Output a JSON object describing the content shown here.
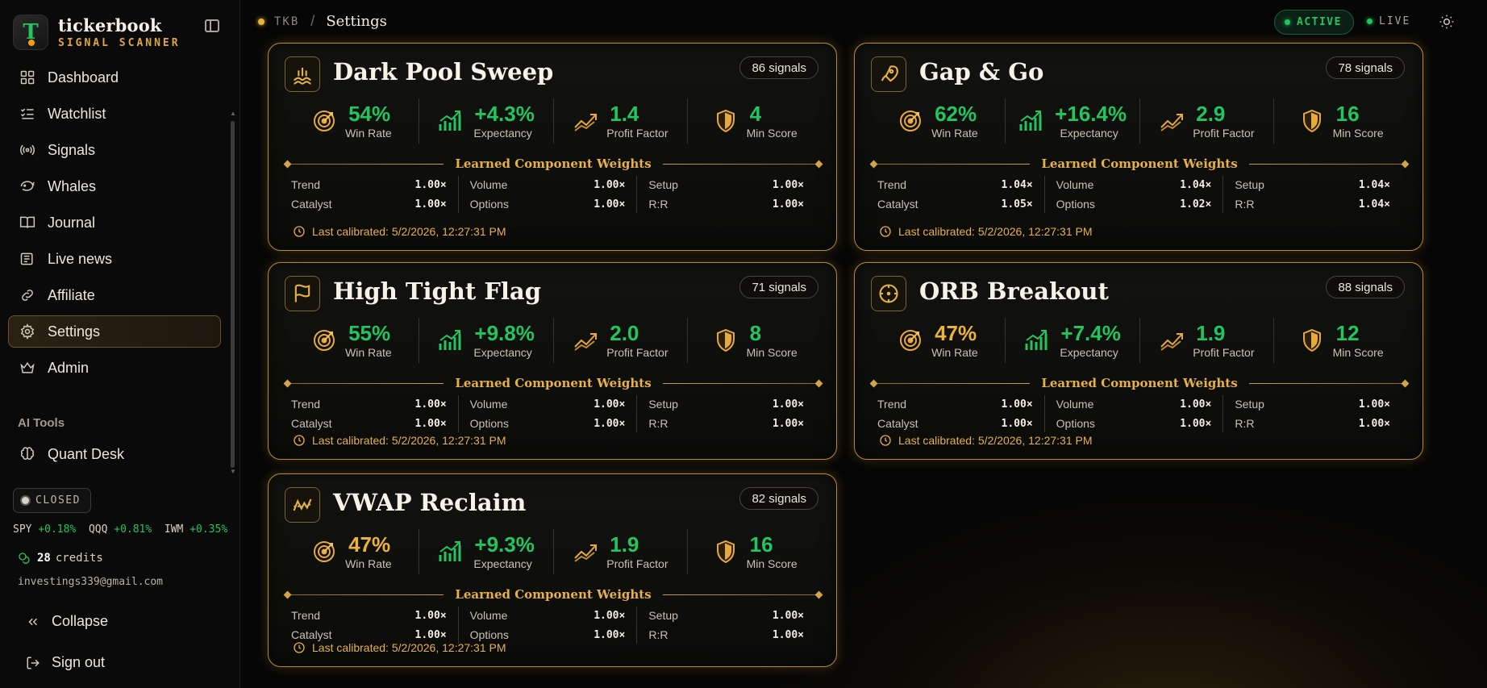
{
  "brand": {
    "name": "tickerbook",
    "subtitle": "SIGNAL SCANNER"
  },
  "nav": [
    {
      "label": "Dashboard",
      "icon": "grid-icon"
    },
    {
      "label": "Watchlist",
      "icon": "checklist-icon"
    },
    {
      "label": "Signals",
      "icon": "radio-icon"
    },
    {
      "label": "Whales",
      "icon": "whale-icon"
    },
    {
      "label": "Journal",
      "icon": "book-icon"
    },
    {
      "label": "Live news",
      "icon": "newspaper-icon"
    },
    {
      "label": "Affiliate",
      "icon": "link-icon"
    },
    {
      "label": "Settings",
      "icon": "gear-icon",
      "active": true
    },
    {
      "label": "Admin",
      "icon": "crown-icon"
    }
  ],
  "ai_tools": {
    "title": "AI Tools",
    "items": [
      {
        "label": "Quant Desk",
        "icon": "brain-icon"
      }
    ]
  },
  "market": {
    "status": "CLOSED",
    "tickers": [
      {
        "sym": "SPY",
        "chg": "+0.18%"
      },
      {
        "sym": "QQQ",
        "chg": "+0.81%"
      },
      {
        "sym": "IWM",
        "chg": "+0.35%"
      }
    ]
  },
  "user": {
    "credits": "28",
    "credits_label": "credits",
    "email": "investings339@gmail.com"
  },
  "footer": {
    "collapse": "Collapse",
    "signout": "Sign out"
  },
  "header": {
    "tag": "TKB",
    "sep": "/",
    "page": "Settings",
    "active": "ACTIVE",
    "live": "LIVE"
  },
  "colors": {
    "accent_gold": "#e6b146",
    "positive": "#22c55e",
    "warning": "#eab43a"
  },
  "labels": {
    "win_rate": "Win Rate",
    "expectancy": "Expectancy",
    "profit_factor": "Profit Factor",
    "min_score": "Min Score",
    "weights_title": "Learned Component Weights",
    "calib_prefix": "Last calibrated: "
  },
  "weight_labels": [
    "Trend",
    "Catalyst",
    "Volume",
    "Options",
    "Setup",
    "R:R"
  ],
  "cards": [
    {
      "title": "Dark Pool Sweep",
      "icon": "waves-icon",
      "signals": "86 signals",
      "win_rate": "54%",
      "win_color": "green",
      "expectancy": "+4.3%",
      "profit_factor": "1.4",
      "min_score": "4",
      "weights": [
        "1.00×",
        "1.00×",
        "1.00×",
        "1.00×",
        "1.00×",
        "1.00×"
      ],
      "calibrated": "5/2/2026, 12:27:31 PM"
    },
    {
      "title": "Gap & Go",
      "icon": "rocket-icon",
      "signals": "78 signals",
      "win_rate": "62%",
      "win_color": "green",
      "expectancy": "+16.4%",
      "profit_factor": "2.9",
      "min_score": "16",
      "weights": [
        "1.04×",
        "1.05×",
        "1.04×",
        "1.02×",
        "1.04×",
        "1.04×"
      ],
      "calibrated": "5/2/2026, 12:27:31 PM"
    },
    {
      "title": "High Tight Flag",
      "icon": "flag-icon",
      "signals": "71 signals",
      "win_rate": "55%",
      "win_color": "green",
      "expectancy": "+9.8%",
      "profit_factor": "2.0",
      "min_score": "8",
      "weights": [
        "1.00×",
        "1.00×",
        "1.00×",
        "1.00×",
        "1.00×",
        "1.00×"
      ],
      "calibrated": "5/2/2026, 12:27:31 PM"
    },
    {
      "title": "ORB Breakout",
      "icon": "crosshair-icon",
      "signals": "88 signals",
      "win_rate": "47%",
      "win_color": "gold",
      "expectancy": "+7.4%",
      "profit_factor": "1.9",
      "min_score": "12",
      "weights": [
        "1.00×",
        "1.00×",
        "1.00×",
        "1.00×",
        "1.00×",
        "1.00×"
      ],
      "calibrated": "5/2/2026, 12:27:31 PM"
    },
    {
      "title": "VWAP Reclaim",
      "icon": "vwap-icon",
      "signals": "82 signals",
      "win_rate": "47%",
      "win_color": "gold",
      "expectancy": "+9.3%",
      "profit_factor": "1.9",
      "min_score": "16",
      "weights": [
        "1.00×",
        "1.00×",
        "1.00×",
        "1.00×",
        "1.00×",
        "1.00×"
      ],
      "calibrated": "5/2/2026, 12:27:31 PM"
    }
  ]
}
